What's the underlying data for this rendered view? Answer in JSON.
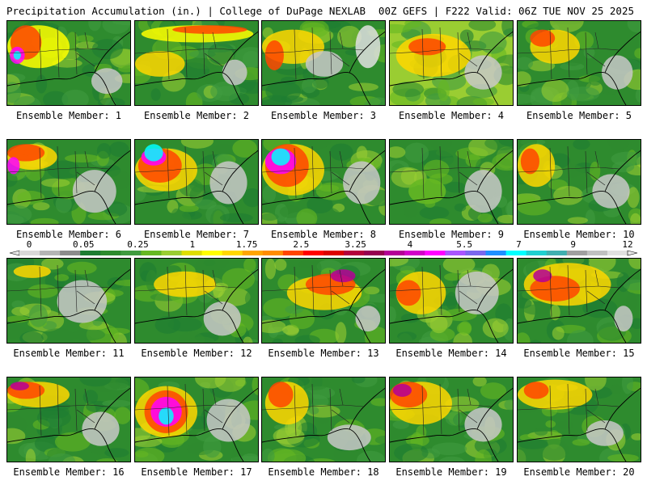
{
  "header": {
    "left": "Precipitation Accumulation (in.) | College of DuPage NEXLAB",
    "right": "00Z GEFS | F222 Valid: 06Z TUE NOV 25 2025"
  },
  "colorbar": {
    "labels": [
      "0",
      "0.05",
      "0.25",
      "1",
      "1.75",
      "2.5",
      "3.25",
      "4",
      "5.5",
      "7",
      "9",
      "12"
    ],
    "colors": [
      "#d8d8d8",
      "#b4b4b4",
      "#8c8c8c",
      "#1e7d32",
      "#2e8b2e",
      "#3f9b3f",
      "#66b822",
      "#9acd32",
      "#dede00",
      "#ffff00",
      "#ffd700",
      "#ffa500",
      "#ff8c00",
      "#ff4500",
      "#ff0000",
      "#dc0000",
      "#b4003c",
      "#960050",
      "#b40096",
      "#d200c8",
      "#ff00ff",
      "#aa55ff",
      "#7b68ee",
      "#1e90ff",
      "#00ffff",
      "#20d0d0",
      "#40b0b0",
      "#a0a0a0",
      "#c0c0c0",
      "#e0e0e0"
    ]
  },
  "members": [
    {
      "label": "Ensemble Member: 1",
      "theme": "green",
      "blobs": [
        [
          "#ffff00",
          0.25,
          0.3,
          0.5,
          0.5
        ],
        [
          "#ff4500",
          0.15,
          0.25,
          0.25,
          0.4
        ],
        [
          "#ff00ff",
          0.08,
          0.4,
          0.12,
          0.2
        ],
        [
          "#00ffff",
          0.08,
          0.4,
          0.06,
          0.1
        ],
        [
          "#c8c8c8",
          0.8,
          0.7,
          0.25,
          0.3
        ]
      ]
    },
    {
      "label": "Ensemble Member: 2",
      "theme": "green",
      "blobs": [
        [
          "#ffff00",
          0.5,
          0.15,
          0.9,
          0.2
        ],
        [
          "#ff4500",
          0.6,
          0.1,
          0.6,
          0.1
        ],
        [
          "#ffd700",
          0.2,
          0.5,
          0.4,
          0.3
        ],
        [
          "#c8c8c8",
          0.8,
          0.6,
          0.2,
          0.3
        ]
      ]
    },
    {
      "label": "Ensemble Member: 3",
      "theme": "green",
      "blobs": [
        [
          "#ffd700",
          0.25,
          0.3,
          0.5,
          0.4
        ],
        [
          "#ff4500",
          0.1,
          0.4,
          0.15,
          0.35
        ],
        [
          "#c8c8c8",
          0.5,
          0.5,
          0.3,
          0.3
        ],
        [
          "#e0e0e0",
          0.85,
          0.3,
          0.2,
          0.5
        ]
      ]
    },
    {
      "label": "Ensemble Member: 4",
      "theme": "yellow",
      "blobs": [
        [
          "#ffd700",
          0.35,
          0.4,
          0.6,
          0.5
        ],
        [
          "#ff4500",
          0.3,
          0.3,
          0.3,
          0.2
        ],
        [
          "#c8c8c8",
          0.75,
          0.6,
          0.3,
          0.4
        ]
      ]
    },
    {
      "label": "Ensemble Member: 5",
      "theme": "green",
      "blobs": [
        [
          "#ffd700",
          0.3,
          0.3,
          0.4,
          0.4
        ],
        [
          "#ff4500",
          0.2,
          0.2,
          0.2,
          0.2
        ],
        [
          "#c8c8c8",
          0.8,
          0.6,
          0.25,
          0.4
        ]
      ]
    },
    {
      "label": "Ensemble Member: 6",
      "theme": "green",
      "blobs": [
        [
          "#ffd700",
          0.2,
          0.2,
          0.4,
          0.3
        ],
        [
          "#ff4500",
          0.15,
          0.15,
          0.3,
          0.2
        ],
        [
          "#ff00ff",
          0.05,
          0.3,
          0.1,
          0.2
        ],
        [
          "#c8c8c8",
          0.7,
          0.6,
          0.35,
          0.5
        ]
      ]
    },
    {
      "label": "Ensemble Member: 7",
      "theme": "green",
      "blobs": [
        [
          "#ffd700",
          0.25,
          0.35,
          0.5,
          0.5
        ],
        [
          "#ff4500",
          0.2,
          0.3,
          0.35,
          0.4
        ],
        [
          "#ff00ff",
          0.15,
          0.2,
          0.2,
          0.2
        ],
        [
          "#00ffff",
          0.15,
          0.15,
          0.15,
          0.2
        ],
        [
          "#c8c8c8",
          0.75,
          0.5,
          0.3,
          0.5
        ]
      ]
    },
    {
      "label": "Ensemble Member: 8",
      "theme": "green",
      "blobs": [
        [
          "#ffd700",
          0.25,
          0.35,
          0.5,
          0.6
        ],
        [
          "#ff4500",
          0.2,
          0.3,
          0.35,
          0.5
        ],
        [
          "#ff00ff",
          0.15,
          0.25,
          0.25,
          0.3
        ],
        [
          "#00ffff",
          0.15,
          0.2,
          0.15,
          0.2
        ],
        [
          "#c8c8c8",
          0.8,
          0.5,
          0.3,
          0.5
        ]
      ]
    },
    {
      "label": "Ensemble Member: 9",
      "theme": "green",
      "blobs": [
        [
          "#c8c8c8",
          0.75,
          0.6,
          0.3,
          0.5
        ],
        [
          "#66b822",
          0.3,
          0.6,
          0.3,
          0.3
        ]
      ]
    },
    {
      "label": "Ensemble Member: 10",
      "theme": "green",
      "blobs": [
        [
          "#ffd700",
          0.15,
          0.3,
          0.3,
          0.5
        ],
        [
          "#ff4500",
          0.1,
          0.25,
          0.15,
          0.3
        ],
        [
          "#c8c8c8",
          0.75,
          0.6,
          0.3,
          0.4
        ]
      ]
    },
    {
      "label": "Ensemble Member: 11",
      "theme": "green",
      "blobs": [
        [
          "#c8c8c8",
          0.6,
          0.5,
          0.4,
          0.5
        ],
        [
          "#ffd700",
          0.2,
          0.15,
          0.3,
          0.15
        ]
      ]
    },
    {
      "label": "Ensemble Member: 12",
      "theme": "green",
      "blobs": [
        [
          "#ffd700",
          0.4,
          0.3,
          0.5,
          0.3
        ],
        [
          "#c8c8c8",
          0.7,
          0.7,
          0.3,
          0.4
        ]
      ]
    },
    {
      "label": "Ensemble Member: 13",
      "theme": "green",
      "blobs": [
        [
          "#ffd700",
          0.5,
          0.4,
          0.6,
          0.4
        ],
        [
          "#ff4500",
          0.55,
          0.3,
          0.4,
          0.25
        ],
        [
          "#b40096",
          0.65,
          0.2,
          0.2,
          0.15
        ],
        [
          "#c8c8c8",
          0.85,
          0.7,
          0.2,
          0.3
        ]
      ]
    },
    {
      "label": "Ensemble Member: 14",
      "theme": "green",
      "blobs": [
        [
          "#ffd700",
          0.25,
          0.4,
          0.4,
          0.5
        ],
        [
          "#ff4500",
          0.15,
          0.4,
          0.2,
          0.3
        ],
        [
          "#c8c8c8",
          0.7,
          0.4,
          0.35,
          0.5
        ]
      ]
    },
    {
      "label": "Ensemble Member: 15",
      "theme": "green",
      "blobs": [
        [
          "#ffd700",
          0.4,
          0.3,
          0.7,
          0.5
        ],
        [
          "#ff4500",
          0.3,
          0.35,
          0.4,
          0.3
        ],
        [
          "#b40096",
          0.2,
          0.2,
          0.15,
          0.15
        ],
        [
          "#c8c8c8",
          0.85,
          0.7,
          0.15,
          0.3
        ]
      ]
    },
    {
      "label": "Ensemble Member: 16",
      "theme": "green",
      "blobs": [
        [
          "#ffd700",
          0.25,
          0.2,
          0.5,
          0.3
        ],
        [
          "#ff4500",
          0.15,
          0.15,
          0.3,
          0.2
        ],
        [
          "#b40096",
          0.1,
          0.1,
          0.15,
          0.1
        ],
        [
          "#c8c8c8",
          0.75,
          0.6,
          0.3,
          0.4
        ]
      ]
    },
    {
      "label": "Ensemble Member: 17",
      "theme": "green",
      "blobs": [
        [
          "#ffd700",
          0.25,
          0.4,
          0.5,
          0.6
        ],
        [
          "#ff4500",
          0.25,
          0.4,
          0.35,
          0.5
        ],
        [
          "#ff00ff",
          0.25,
          0.4,
          0.25,
          0.35
        ],
        [
          "#00ffff",
          0.25,
          0.45,
          0.12,
          0.2
        ],
        [
          "#c8c8c8",
          0.75,
          0.5,
          0.35,
          0.5
        ]
      ]
    },
    {
      "label": "Ensemble Member: 18",
      "theme": "green",
      "blobs": [
        [
          "#ffd700",
          0.2,
          0.3,
          0.35,
          0.5
        ],
        [
          "#ff4500",
          0.15,
          0.2,
          0.2,
          0.3
        ],
        [
          "#c8c8c8",
          0.7,
          0.7,
          0.35,
          0.3
        ]
      ]
    },
    {
      "label": "Ensemble Member: 19",
      "theme": "green",
      "blobs": [
        [
          "#ffd700",
          0.25,
          0.3,
          0.5,
          0.5
        ],
        [
          "#ff4500",
          0.15,
          0.2,
          0.3,
          0.3
        ],
        [
          "#b40096",
          0.1,
          0.15,
          0.15,
          0.15
        ],
        [
          "#c8c8c8",
          0.75,
          0.55,
          0.3,
          0.4
        ]
      ]
    },
    {
      "label": "Ensemble Member: 20",
      "theme": "green",
      "blobs": [
        [
          "#ffd700",
          0.3,
          0.2,
          0.6,
          0.35
        ],
        [
          "#ff4500",
          0.15,
          0.15,
          0.2,
          0.2
        ],
        [
          "#c8c8c8",
          0.7,
          0.65,
          0.3,
          0.3
        ]
      ]
    }
  ]
}
